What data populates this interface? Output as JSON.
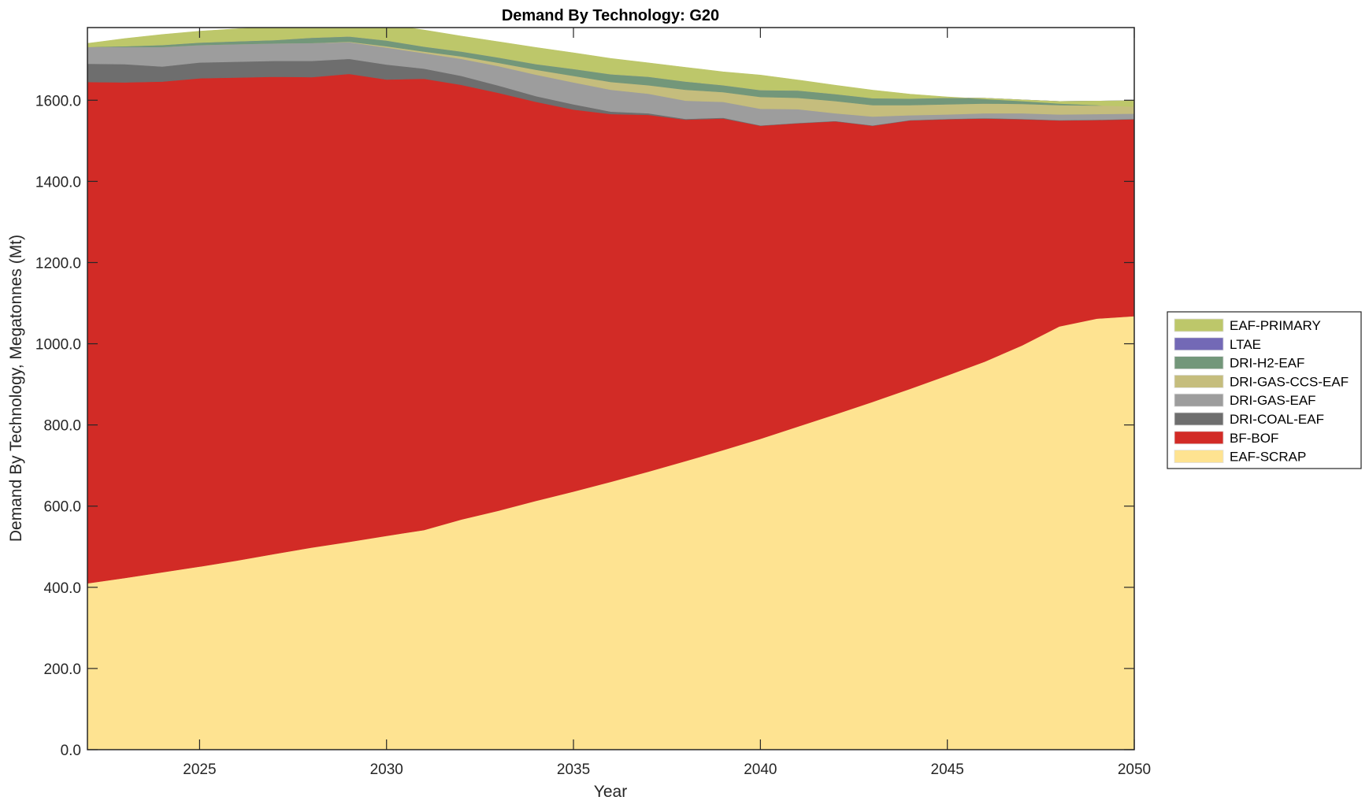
{
  "chart_data": {
    "type": "area",
    "stacked": true,
    "title": "Demand By Technology: G20",
    "xlabel": "Year",
    "ylabel": "Demand By Technology, Megatonnes (Mt)",
    "xlim": [
      2022,
      2050
    ],
    "ylim": [
      0,
      1779
    ],
    "x_ticks": [
      2025,
      2030,
      2035,
      2040,
      2045,
      2050
    ],
    "x_tick_labels": [
      "2025",
      "2030",
      "2035",
      "2040",
      "2045",
      "2050"
    ],
    "y_ticks": [
      0,
      200,
      400,
      600,
      800,
      1000,
      1200,
      1400,
      1600
    ],
    "y_tick_labels": [
      "0.0",
      "200.0",
      "400.0",
      "600.0",
      "800.0",
      "1000.0",
      "1200.0",
      "1400.0",
      "1600.0"
    ],
    "grid": false,
    "legend_position": "outside-right",
    "x": [
      2022,
      2023,
      2024,
      2025,
      2026,
      2027,
      2028,
      2029,
      2030,
      2031,
      2032,
      2033,
      2034,
      2035,
      2036,
      2037,
      2038,
      2039,
      2040,
      2041,
      2042,
      2043,
      2044,
      2045,
      2046,
      2047,
      2048,
      2049,
      2050
    ],
    "series": [
      {
        "name": "EAF-SCRAP",
        "color": "#FEE391",
        "values": [
          410,
          423,
          437,
          451,
          466,
          482,
          498,
          512,
          527,
          541,
          567,
          589,
          613,
          636,
          660,
          685,
          711,
          738,
          766,
          796,
          826,
          857,
          889,
          922,
          956,
          996,
          1043,
          1062,
          1068
        ]
      },
      {
        "name": "BF-BOF",
        "color": "#D22B26",
        "values": [
          1235,
          1221,
          1209,
          1203,
          1190,
          1176,
          1159,
          1153,
          1124,
          1112,
          1071,
          1029,
          983,
          941,
          906,
          879,
          841,
          817,
          771,
          747,
          722,
          680,
          661,
          631,
          599,
          557,
          507,
          489,
          485
        ]
      },
      {
        "name": "DRI-COAL-EAF",
        "color": "#6E6E6E",
        "values": [
          45,
          45,
          37,
          39,
          39,
          39,
          40,
          37,
          37,
          25,
          22,
          18,
          14,
          13,
          6,
          4,
          2,
          2,
          1,
          1,
          1,
          1,
          1,
          1,
          1,
          1,
          1,
          1,
          1
        ]
      },
      {
        "name": "DRI-GAS-EAF",
        "color": "#9D9D9D",
        "values": [
          41,
          42,
          48,
          43,
          43,
          43,
          44,
          41,
          42,
          38,
          42,
          48,
          53,
          54,
          54,
          48,
          45,
          39,
          41,
          34,
          19,
          22,
          12,
          11,
          12,
          14,
          14,
          14,
          13
        ]
      },
      {
        "name": "DRI-GAS-CCS-EAF",
        "color": "#C5BD7D",
        "values": [
          0,
          0,
          0,
          0,
          0,
          0,
          0,
          1,
          3,
          4,
          6,
          8,
          12,
          16,
          19,
          21,
          27,
          24,
          29,
          28,
          30,
          28,
          25,
          25,
          24,
          23,
          23,
          21,
          23
        ]
      },
      {
        "name": "DRI-H2-EAF",
        "color": "#73977A",
        "values": [
          0,
          2,
          5,
          6,
          7,
          8,
          13,
          13,
          14,
          12,
          12,
          13,
          14,
          17,
          19,
          21,
          20,
          17,
          17,
          18,
          17,
          17,
          16,
          16,
          13,
          10,
          9,
          11,
          9
        ]
      },
      {
        "name": "LTAE",
        "color": "#7369B6",
        "values": [
          0,
          0,
          0,
          0,
          0,
          0,
          0,
          0,
          0,
          0,
          0,
          0,
          0,
          0,
          0,
          0,
          0,
          0,
          0,
          0,
          0,
          0,
          0,
          0,
          0,
          0,
          0,
          0,
          0
        ]
      },
      {
        "name": "EAF-PRIMARY",
        "color": "#BDC76A",
        "values": [
          9,
          19,
          26,
          28,
          31,
          33,
          31,
          30,
          40,
          41,
          38,
          39,
          41,
          40,
          39,
          34,
          35,
          33,
          37,
          26,
          22,
          20,
          11,
          2,
          -2,
          -3,
          -5,
          -10,
          -15
        ]
      }
    ],
    "legend_order": [
      "EAF-PRIMARY",
      "LTAE",
      "DRI-H2-EAF",
      "DRI-GAS-CCS-EAF",
      "DRI-GAS-EAF",
      "DRI-COAL-EAF",
      "BF-BOF",
      "EAF-SCRAP"
    ]
  }
}
